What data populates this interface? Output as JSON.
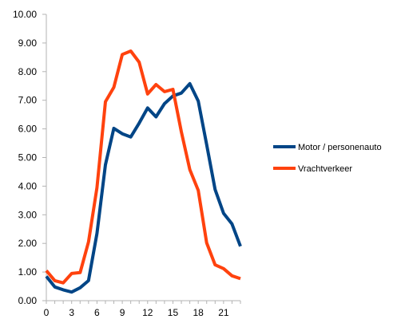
{
  "chart_data": {
    "type": "line",
    "x": [
      0,
      1,
      2,
      3,
      4,
      5,
      6,
      7,
      8,
      9,
      10,
      11,
      12,
      13,
      14,
      15,
      16,
      17,
      18,
      19,
      20,
      21,
      22,
      23
    ],
    "x_tick_labels": [
      "0",
      "3",
      "6",
      "9",
      "12",
      "15",
      "18",
      "21"
    ],
    "x_tick_values": [
      0,
      3,
      6,
      9,
      12,
      15,
      18,
      21
    ],
    "xlim": [
      0,
      23
    ],
    "ylim": [
      0,
      10
    ],
    "y_tick_values": [
      0,
      1,
      2,
      3,
      4,
      5,
      6,
      7,
      8,
      9,
      10
    ],
    "y_tick_labels": [
      "0.00",
      "1.00",
      "2.00",
      "3.00",
      "4.00",
      "5.00",
      "6.00",
      "7.00",
      "8.00",
      "9.00",
      "10.00"
    ],
    "grid": false,
    "legend_position": "right",
    "series": [
      {
        "name": "Motor / personenauto",
        "color": "#004586",
        "values": [
          0.85,
          0.48,
          0.38,
          0.3,
          0.45,
          0.7,
          2.35,
          4.75,
          6.02,
          5.83,
          5.72,
          6.2,
          6.73,
          6.42,
          6.88,
          7.15,
          7.25,
          7.58,
          6.97,
          5.45,
          3.88,
          3.05,
          2.68,
          1.9
        ]
      },
      {
        "name": "Vrachtverkeer",
        "color": "#ff420e",
        "values": [
          1.05,
          0.7,
          0.62,
          0.95,
          0.98,
          2.05,
          3.95,
          6.95,
          7.45,
          8.6,
          8.72,
          8.33,
          7.22,
          7.55,
          7.3,
          7.38,
          5.9,
          4.58,
          3.85,
          2.02,
          1.25,
          1.12,
          0.87,
          0.77
        ]
      }
    ]
  }
}
